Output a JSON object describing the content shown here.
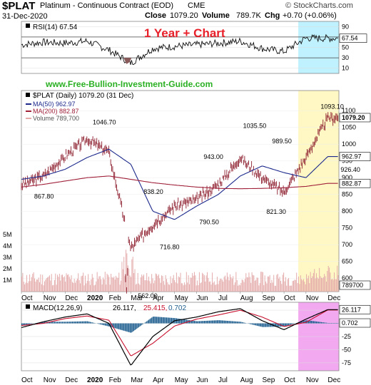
{
  "header": {
    "symbol": "$PLAT",
    "name": "Platinum - Continuous Contract (EOD)",
    "exchange": "CME",
    "date": "31-Dec-2020",
    "close_label": "Close",
    "close": "1079.20",
    "volume_label": "Volume",
    "volume": "789.7K",
    "chg_label": "Chg",
    "chg": "+0.70 (+0.06%)",
    "watermark": "© StockCharts.com"
  },
  "colors": {
    "price_bar": "#8b1a2a",
    "ma50": "#1d2a8c",
    "ma200": "#a0203a",
    "volume": "#e4aaaa",
    "highlight_cyan": "#bff1ff",
    "highlight_yellow": "#fff8c4",
    "highlight_magenta": "#f2a9f0",
    "title_red": "#e8202a",
    "url_green": "#2ab022",
    "macd_signal": "#c8102e",
    "macd_hist": "#1f5f8f"
  },
  "chart_data": [
    {
      "type": "line",
      "panel": "rsi",
      "legend": "RSI(14) 67.54",
      "annotation": "1 Year + Chart",
      "y_ticks": [
        10,
        30,
        50,
        70,
        90
      ],
      "ylim": [
        0,
        100
      ],
      "last_value": "67.54",
      "overbought": 70,
      "oversold": 30
    },
    {
      "type": "bar",
      "panel": "price",
      "title": "$PLAT (Daily) 1079.20 (31 Dec)",
      "url": "www.Free-Bullion-Investment-Guide.com",
      "legend": [
        {
          "name": "MA(50) 962.97"
        },
        {
          "name": "MA(200) 882.87"
        },
        {
          "name": "Volume 789,700"
        }
      ],
      "ylim": [
        560,
        1160
      ],
      "y_ticks": [
        600,
        650,
        700,
        750,
        800,
        850,
        900,
        950,
        1000,
        1050,
        1100
      ],
      "volume_ticks": [
        "1M",
        "2M",
        "3M",
        "4M",
        "5M"
      ],
      "last_labels": {
        "price": "1079.20",
        "ma50": "962.97",
        "ma200": "882.87",
        "volume": "789700"
      },
      "annotations": [
        {
          "label": "867.80",
          "x": "Oct 2019",
          "y": 867.8
        },
        {
          "label": "1046.70",
          "x": "Jan 2020",
          "y": 1046.7
        },
        {
          "label": "838.20",
          "x": "Mar 2020",
          "y": 838.2
        },
        {
          "label": "562.00",
          "x": "Mar 2020",
          "y": 562.0
        },
        {
          "label": "716.80",
          "x": "Apr 2020",
          "y": 716.8
        },
        {
          "label": "943.00",
          "x": "Jun 2020",
          "y": 943.0
        },
        {
          "label": "790.50",
          "x": "Jun 2020",
          "y": 790.5
        },
        {
          "label": "1035.50",
          "x": "Aug 2020",
          "y": 1035.5
        },
        {
          "label": "989.50",
          "x": "Sep 2020",
          "y": 989.5
        },
        {
          "label": "821.30",
          "x": "Sep 2020",
          "y": 821.3
        },
        {
          "label": "1093.10",
          "x": "Dec 2020",
          "y": 1093.1
        },
        {
          "label": "926.40",
          "x": "Dec 2020",
          "y": 926.4
        }
      ],
      "series": [
        {
          "name": "$PLAT",
          "x": [
            "Oct 2019",
            "Nov 2019",
            "Dec 2019",
            "Jan 2020",
            "Feb 2020",
            "Mar 2020",
            "Apr 2020",
            "May 2020",
            "Jun 2020",
            "Jul 2020",
            "Aug 2020",
            "Sep 2020",
            "Oct 2020",
            "Nov 2020",
            "Dec 2020"
          ],
          "values": [
            880,
            905,
            965,
            1015,
            975,
            690,
            760,
            815,
            835,
            880,
            960,
            900,
            855,
            960,
            1079
          ]
        },
        {
          "name": "MA(50)",
          "x": [
            "Oct 2019",
            "Nov 2019",
            "Dec 2019",
            "Jan 2020",
            "Feb 2020",
            "Mar 2020",
            "Apr 2020",
            "May 2020",
            "Jun 2020",
            "Jul 2020",
            "Aug 2020",
            "Sep 2020",
            "Oct 2020",
            "Nov 2020",
            "Dec 2020"
          ],
          "values": [
            895,
            905,
            925,
            960,
            985,
            940,
            800,
            775,
            815,
            850,
            905,
            935,
            915,
            900,
            963
          ]
        },
        {
          "name": "MA(200)",
          "x": [
            "Oct 2019",
            "Nov 2019",
            "Dec 2019",
            "Jan 2020",
            "Feb 2020",
            "Mar 2020",
            "Apr 2020",
            "May 2020",
            "Jun 2020",
            "Jul 2020",
            "Aug 2020",
            "Sep 2020",
            "Oct 2020",
            "Nov 2020",
            "Dec 2020"
          ],
          "values": [
            872,
            880,
            890,
            900,
            905,
            895,
            885,
            878,
            872,
            868,
            867,
            868,
            870,
            874,
            883
          ]
        }
      ]
    },
    {
      "type": "line",
      "panel": "macd",
      "legend_label": "MACD(12,26,9)",
      "legend_values": [
        "26.117",
        "25.415",
        "0.702"
      ],
      "y_ticks": [
        -75,
        -50,
        -25,
        0,
        25
      ],
      "ylim": [
        -90,
        40
      ],
      "last_labels": [
        "26.117",
        "0.702"
      ],
      "series": [
        {
          "name": "MACD",
          "x": [
            "Oct 2019",
            "Nov 2019",
            "Dec 2019",
            "Jan 2020",
            "Feb 2020",
            "Mar 2020",
            "Apr 2020",
            "May 2020",
            "Jun 2020",
            "Jul 2020",
            "Aug 2020",
            "Sep 2020",
            "Oct 2020",
            "Nov 2020",
            "Dec 2020"
          ],
          "values": [
            -8,
            3,
            12,
            18,
            0,
            -80,
            -25,
            5,
            12,
            22,
            28,
            5,
            -12,
            8,
            26.117
          ]
        },
        {
          "name": "Signal",
          "x": [
            "Oct 2019",
            "Nov 2019",
            "Dec 2019",
            "Jan 2020",
            "Feb 2020",
            "Mar 2020",
            "Apr 2020",
            "May 2020",
            "Jun 2020",
            "Jul 2020",
            "Aug 2020",
            "Sep 2020",
            "Oct 2020",
            "Nov 2020",
            "Dec 2020"
          ],
          "values": [
            -4,
            0,
            9,
            14,
            6,
            -62,
            -38,
            -5,
            8,
            16,
            25,
            12,
            -6,
            2,
            25.415
          ]
        }
      ]
    }
  ],
  "x_axis_labels": [
    "Oct",
    "Nov",
    "Dec",
    "2020",
    "Feb",
    "Mar",
    "Apr",
    "May",
    "Jun",
    "Jul",
    "Aug",
    "Sep",
    "Oct",
    "Nov",
    "Dec"
  ]
}
